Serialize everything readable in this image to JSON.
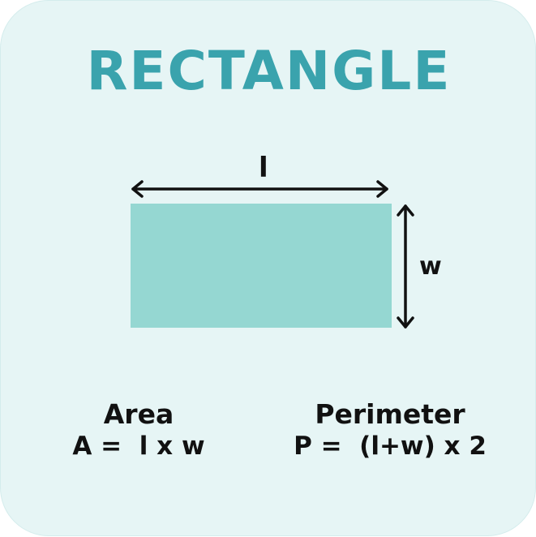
{
  "title": "RECTANGLE",
  "colors": {
    "title": "#3aa3ad",
    "rectangle_fill": "#95d7d2",
    "background": "#e6f5f5",
    "arrows": "#111111"
  },
  "diagram": {
    "length_label": "l",
    "width_label": "w"
  },
  "area": {
    "name": "Area",
    "formula": "A =  l x w"
  },
  "perimeter": {
    "name": "Perimeter",
    "formula": "P =  (l+w) x 2"
  }
}
